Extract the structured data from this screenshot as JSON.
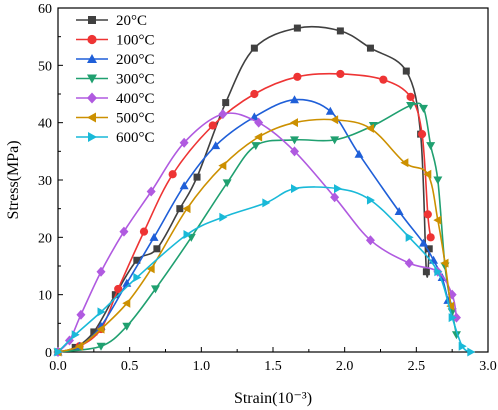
{
  "chart_data": {
    "type": "line",
    "title": "",
    "xlabel": "Strain(10⁻³)",
    "ylabel": "Stress(MPa)",
    "xlim": [
      0.0,
      3.0
    ],
    "ylim": [
      0,
      60
    ],
    "xticks": [
      "0.0",
      "0.5",
      "1.0",
      "1.5",
      "2.0",
      "2.5",
      "3.0"
    ],
    "yticks": [
      "0",
      "10",
      "20",
      "30",
      "40",
      "50",
      "60"
    ],
    "grid": false,
    "legend_position": "top-left",
    "series": [
      {
        "name": "20°C",
        "color": "#404040",
        "marker": "square",
        "x": [
          0.0,
          0.12,
          0.25,
          0.4,
          0.55,
          0.69,
          0.85,
          0.97,
          1.17,
          1.37,
          1.67,
          1.97,
          2.18,
          2.43,
          2.53,
          2.57,
          2.59
        ],
        "y": [
          0.0,
          0.8,
          3.5,
          10.0,
          16.0,
          18.0,
          25.0,
          30.5,
          43.5,
          53.0,
          56.5,
          56.0,
          53.0,
          49.0,
          38.0,
          14.0,
          18.0
        ]
      },
      {
        "name": "100°C",
        "color": "#ee3434",
        "marker": "circle",
        "x": [
          0.0,
          0.15,
          0.3,
          0.42,
          0.6,
          0.8,
          1.08,
          1.37,
          1.67,
          1.97,
          2.27,
          2.46,
          2.54,
          2.58,
          2.6
        ],
        "y": [
          0.0,
          1.0,
          4.0,
          11.0,
          21.0,
          31.0,
          39.5,
          45.0,
          48.0,
          48.5,
          47.5,
          44.5,
          38.0,
          24.0,
          20.0
        ]
      },
      {
        "name": "200°C",
        "color": "#1f5fd8",
        "marker": "triangle-up",
        "x": [
          0.0,
          0.15,
          0.3,
          0.48,
          0.67,
          0.88,
          1.1,
          1.37,
          1.65,
          1.9,
          2.1,
          2.38,
          2.55,
          2.62,
          2.68,
          2.72
        ],
        "y": [
          0.0,
          1.0,
          4.5,
          12.0,
          20.0,
          29.0,
          36.0,
          41.0,
          44.0,
          42.0,
          34.5,
          24.5,
          19.0,
          16.0,
          13.0,
          9.0
        ]
      },
      {
        "name": "300°C",
        "color": "#20a070",
        "marker": "triangle-down",
        "x": [
          0.0,
          0.3,
          0.48,
          0.68,
          0.93,
          1.18,
          1.38,
          1.65,
          1.93,
          2.2,
          2.46,
          2.55,
          2.6,
          2.65,
          2.7,
          2.75,
          2.78
        ],
        "y": [
          0.0,
          1.0,
          4.5,
          11.0,
          20.0,
          29.5,
          36.0,
          37.0,
          37.0,
          39.5,
          43.0,
          42.5,
          36.0,
          30.0,
          15.0,
          7.0,
          3.0
        ]
      },
      {
        "name": "400°C",
        "color": "#b05ae0",
        "marker": "diamond",
        "x": [
          0.0,
          0.08,
          0.16,
          0.3,
          0.46,
          0.65,
          0.88,
          1.15,
          1.4,
          1.65,
          1.93,
          2.18,
          2.45,
          2.65,
          2.75,
          2.78
        ],
        "y": [
          0.0,
          2.0,
          6.5,
          14.0,
          21.0,
          28.0,
          36.5,
          41.5,
          40.0,
          35.0,
          27.0,
          19.5,
          15.5,
          14.0,
          10.0,
          6.0
        ]
      },
      {
        "name": "500°C",
        "color": "#cc9000",
        "marker": "triangle-left",
        "x": [
          0.0,
          0.15,
          0.3,
          0.48,
          0.65,
          0.9,
          1.15,
          1.4,
          1.65,
          1.93,
          2.18,
          2.42,
          2.58,
          2.65,
          2.7,
          2.74
        ],
        "y": [
          0.0,
          1.0,
          4.0,
          8.5,
          14.5,
          25.0,
          32.5,
          37.5,
          40.0,
          40.5,
          39.0,
          33.0,
          31.0,
          23.0,
          15.5,
          8.0
        ]
      },
      {
        "name": "600°C",
        "color": "#19b9d8",
        "marker": "triangle-right",
        "x": [
          0.0,
          0.12,
          0.3,
          0.55,
          0.9,
          1.15,
          1.45,
          1.65,
          1.95,
          2.18,
          2.45,
          2.65,
          2.75,
          2.82,
          2.88
        ],
        "y": [
          0.0,
          3.0,
          7.0,
          13.0,
          20.5,
          23.5,
          26.0,
          28.5,
          28.5,
          26.5,
          20.0,
          14.0,
          6.0,
          1.0,
          0.0
        ]
      }
    ]
  }
}
